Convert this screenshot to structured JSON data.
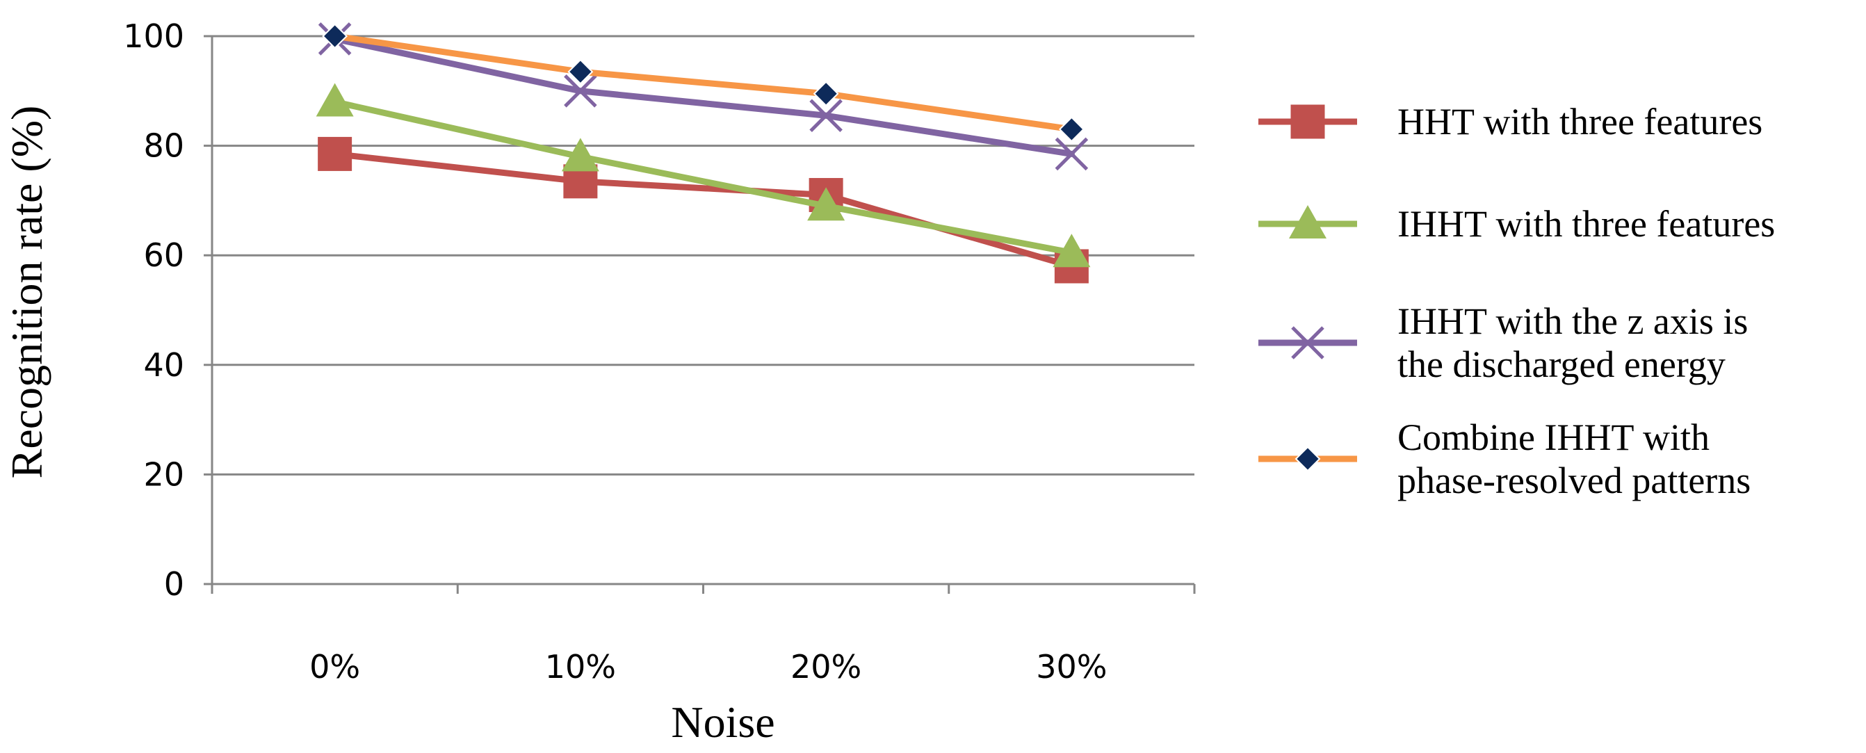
{
  "chart_data": {
    "type": "line",
    "title": "",
    "xlabel": "Noise",
    "ylabel": "Recognition rate (%)",
    "categories": [
      "0%",
      "10%",
      "20%",
      "30%"
    ],
    "ylim": [
      0,
      100
    ],
    "yticks": [
      0,
      20,
      40,
      60,
      80,
      100
    ],
    "grid": true,
    "legend_position": "right",
    "series": [
      {
        "name": "HHT with three features",
        "legend_lines": [
          "HHT with three features"
        ],
        "values": [
          78.5,
          73.5,
          71,
          58
        ],
        "color": "#c0504d",
        "marker": "square"
      },
      {
        "name": "IHHT with three features",
        "legend_lines": [
          "IHHT with three features"
        ],
        "values": [
          88,
          78,
          69,
          60.5
        ],
        "color": "#9bbb59",
        "marker": "triangle"
      },
      {
        "name": "IHHT with  the z axis is the discharged energy",
        "legend_lines": [
          "IHHT with  the z axis is",
          "the discharged energy"
        ],
        "values": [
          99.5,
          90,
          85.5,
          78.5
        ],
        "color": "#8064a2",
        "marker": "x"
      },
      {
        "name": "Combine IHHT with phase-resolved patterns",
        "legend_lines": [
          "Combine IHHT with",
          "phase-resolved patterns"
        ],
        "values": [
          100,
          93.5,
          89.5,
          83
        ],
        "color": "#f79646",
        "marker": "diamond",
        "marker_color": "#0d2a5a"
      }
    ]
  }
}
